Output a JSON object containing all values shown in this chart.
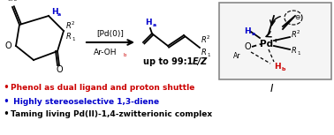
{
  "bg_color": "#ffffff",
  "bullet1_color": "#cc0000",
  "bullet2_color": "#0000cc",
  "bullet3_color": "#000000",
  "blue_color": "#0000cc",
  "red_color": "#cc0000",
  "black_color": "#000000",
  "gray_color": "#888888",
  "bullet1": "Phenol as dual ligand and proton shuttle",
  "bullet2": "Highly stereoselective 1,3-diene",
  "bullet3": "Taming living Pd(II)-1,4-zwitterionic complex",
  "arrow_label_top": "[Pd(0)]",
  "product_label": "up to 99:1 ",
  "product_label_italic": "E/Z"
}
